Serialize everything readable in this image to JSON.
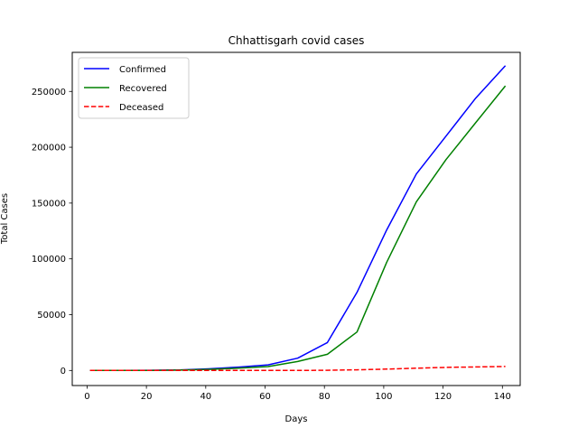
{
  "chart_data": {
    "type": "line",
    "title": "Chhattisgarh covid cases",
    "xlabel": "Days",
    "ylabel": "Total Cases",
    "xlim": [
      -5,
      146
    ],
    "ylim": [
      -13500,
      285000
    ],
    "xticks": [
      0,
      20,
      40,
      60,
      80,
      100,
      120,
      140
    ],
    "yticks": [
      0,
      50000,
      100000,
      150000,
      200000,
      250000
    ],
    "grid": false,
    "legend_position": "upper left",
    "x": [
      1,
      11,
      21,
      31,
      41,
      51,
      61,
      71,
      81,
      91,
      101,
      111,
      121,
      131,
      141
    ],
    "series": [
      {
        "name": "Confirmed",
        "color": "#0000ff",
        "style": "solid",
        "values": [
          0,
          100,
          200,
          500,
          1500,
          3000,
          5000,
          11000,
          25000,
          70000,
          126000,
          176000,
          210000,
          244000,
          273000
        ]
      },
      {
        "name": "Recovered",
        "color": "#008000",
        "style": "solid",
        "values": [
          0,
          50,
          100,
          300,
          1000,
          2000,
          3500,
          8000,
          14500,
          34500,
          97000,
          151000,
          189000,
          222000,
          255000
        ]
      },
      {
        "name": "Deceased",
        "color": "#ff0000",
        "style": "dashed",
        "values": [
          0,
          0,
          0,
          0,
          0,
          0,
          0,
          0,
          200,
          600,
          1200,
          2000,
          2800,
          3200,
          3600
        ]
      }
    ]
  }
}
